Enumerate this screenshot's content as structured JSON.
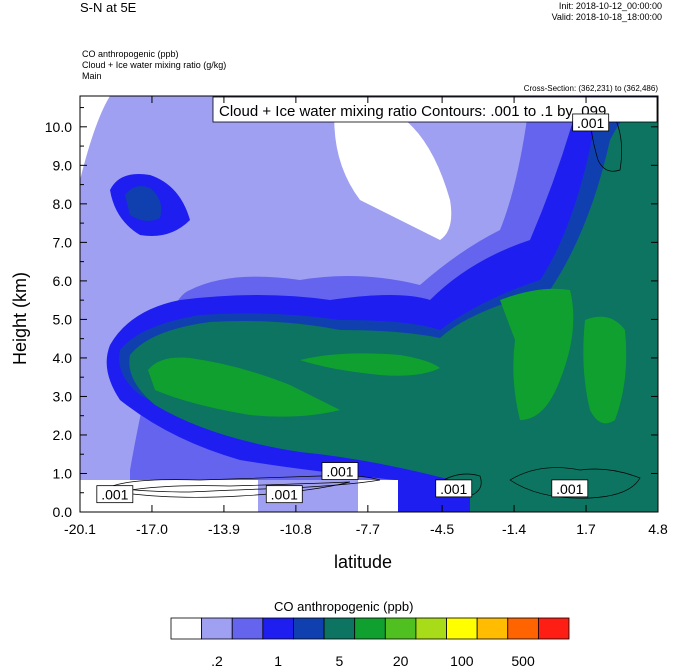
{
  "header": {
    "title": "S-N at 5E",
    "init": "Init: 2018-10-12_00:00:00",
    "valid": "Valid: 2018-10-18_18:00:00",
    "desc_lines": [
      "CO anthropogenic   (ppb)",
      "Cloud + Ice water mixing ratio   (g/kg)",
      "Main"
    ],
    "cross_section": "Cross-Section: (362,231) to (362,486)"
  },
  "chart_data": {
    "type": "heatmap",
    "ylabel": "Height (km)",
    "xlabel": "latitude",
    "ylim": [
      0,
      10.8
    ],
    "xlim": [
      -20.1,
      4.8
    ],
    "yticks": [
      "0.0",
      "1.0",
      "2.0",
      "3.0",
      "4.0",
      "5.0",
      "6.0",
      "7.0",
      "8.0",
      "9.0",
      "10.0"
    ],
    "ytick_values": [
      0,
      1,
      2,
      3,
      4,
      5,
      6,
      7,
      8,
      9,
      10
    ],
    "xticks": [
      "-20.1",
      "-17.0",
      "-13.9",
      "-10.8",
      "-7.7",
      "-4.5",
      "-1.4",
      "1.7",
      "4.8"
    ],
    "xtick_values": [
      -20.1,
      -17.0,
      -13.9,
      -10.8,
      -7.7,
      -4.5,
      -1.4,
      1.7,
      4.8
    ],
    "contour_title": "Cloud + Ice water mixing ratio Contours: .001 to .1 by .099",
    "contour_labels": [
      {
        "text": ".001",
        "lat": -18.6,
        "h": 0.45
      },
      {
        "text": ".001",
        "lat": -8.9,
        "h": 1.05
      },
      {
        "text": ".001",
        "lat": -11.3,
        "h": 0.45
      },
      {
        "text": ".001",
        "lat": -4.0,
        "h": 0.6
      },
      {
        "text": ".001",
        "lat": 1.0,
        "h": 0.6
      },
      {
        "text": ".001",
        "lat": 1.9,
        "h": 10.1
      }
    ],
    "colorbar": {
      "title": "CO anthropogenic  (ppb)",
      "colors": [
        "#ffffff",
        "#a0a0f2",
        "#6464ee",
        "#1e1ef0",
        "#1040b0",
        "#0c7460",
        "#10a030",
        "#50c020",
        "#a8dc18",
        "#ffff00",
        "#ffbc00",
        "#ff6400",
        "#ff1e14"
      ],
      "labels": [
        ".2",
        "1",
        "5",
        "20",
        "100",
        "500"
      ]
    },
    "field_colors": {
      "white": "#ffffff",
      "light": "#a0a0f2",
      "mid": "#6464ee",
      "blue": "#1e1ef0",
      "dark": "#1040b0",
      "teal": "#0c7460",
      "green": "#10a030"
    }
  }
}
